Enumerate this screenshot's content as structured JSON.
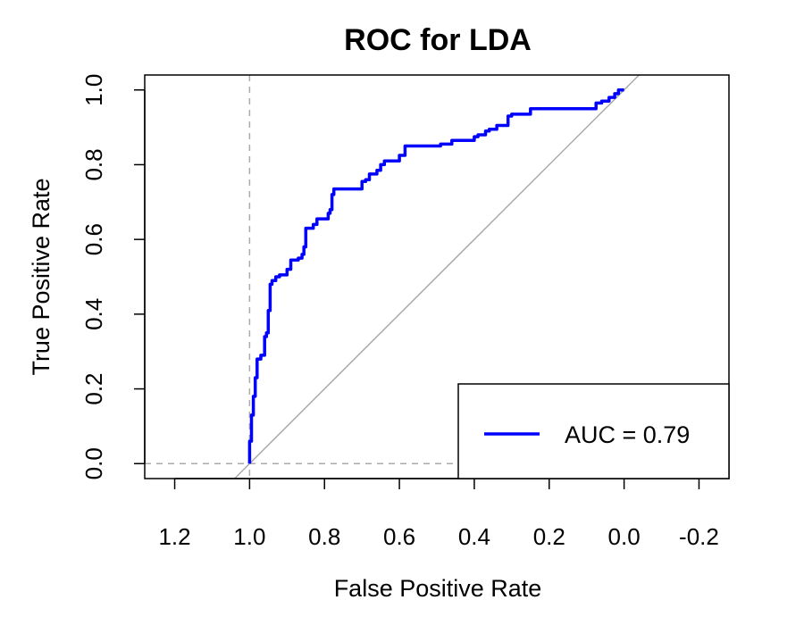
{
  "chart_data": {
    "type": "line",
    "title": "ROC for LDA",
    "xlabel": "False Positive Rate",
    "ylabel": "True Positive Rate",
    "x_reversed": true,
    "xlim": [
      1.28,
      -0.28
    ],
    "ylim": [
      -0.04,
      1.04
    ],
    "x_ticks": [
      1.2,
      1.0,
      0.8,
      0.6,
      0.4,
      0.2,
      0.0,
      -0.2
    ],
    "x_tick_labels": [
      "1.2",
      "1.0",
      "0.8",
      "0.6",
      "0.4",
      "0.2",
      "0.0",
      "-0.2"
    ],
    "y_ticks": [
      0.0,
      0.2,
      0.4,
      0.6,
      0.8,
      1.0
    ],
    "y_tick_labels": [
      "0.0",
      "0.2",
      "0.4",
      "0.6",
      "0.8",
      "1.0"
    ],
    "reference_lines": {
      "vertical_x": 1.0,
      "horizontal_y": 0.0,
      "diagonal": "y = 1 - x",
      "color": "#aaaaaa"
    },
    "series": [
      {
        "name": "AUC = 0.79",
        "color": "#0000ff",
        "points": [
          [
            1.0,
            0.0
          ],
          [
            1.0,
            0.06
          ],
          [
            0.995,
            0.06
          ],
          [
            0.995,
            0.13
          ],
          [
            0.99,
            0.13
          ],
          [
            0.99,
            0.18
          ],
          [
            0.985,
            0.18
          ],
          [
            0.985,
            0.23
          ],
          [
            0.98,
            0.23
          ],
          [
            0.98,
            0.28
          ],
          [
            0.97,
            0.28
          ],
          [
            0.97,
            0.29
          ],
          [
            0.96,
            0.29
          ],
          [
            0.96,
            0.34
          ],
          [
            0.955,
            0.34
          ],
          [
            0.955,
            0.35
          ],
          [
            0.95,
            0.35
          ],
          [
            0.95,
            0.41
          ],
          [
            0.945,
            0.41
          ],
          [
            0.945,
            0.48
          ],
          [
            0.94,
            0.48
          ],
          [
            0.94,
            0.49
          ],
          [
            0.93,
            0.49
          ],
          [
            0.93,
            0.5
          ],
          [
            0.92,
            0.5
          ],
          [
            0.92,
            0.505
          ],
          [
            0.9,
            0.505
          ],
          [
            0.9,
            0.52
          ],
          [
            0.89,
            0.52
          ],
          [
            0.89,
            0.545
          ],
          [
            0.87,
            0.545
          ],
          [
            0.87,
            0.55
          ],
          [
            0.86,
            0.55
          ],
          [
            0.86,
            0.56
          ],
          [
            0.855,
            0.56
          ],
          [
            0.855,
            0.58
          ],
          [
            0.85,
            0.58
          ],
          [
            0.85,
            0.63
          ],
          [
            0.83,
            0.63
          ],
          [
            0.83,
            0.64
          ],
          [
            0.82,
            0.64
          ],
          [
            0.82,
            0.655
          ],
          [
            0.79,
            0.655
          ],
          [
            0.79,
            0.67
          ],
          [
            0.785,
            0.67
          ],
          [
            0.785,
            0.68
          ],
          [
            0.78,
            0.68
          ],
          [
            0.78,
            0.72
          ],
          [
            0.775,
            0.72
          ],
          [
            0.775,
            0.735
          ],
          [
            0.7,
            0.735
          ],
          [
            0.7,
            0.755
          ],
          [
            0.69,
            0.755
          ],
          [
            0.69,
            0.76
          ],
          [
            0.68,
            0.76
          ],
          [
            0.68,
            0.775
          ],
          [
            0.66,
            0.775
          ],
          [
            0.66,
            0.785
          ],
          [
            0.65,
            0.785
          ],
          [
            0.65,
            0.8
          ],
          [
            0.64,
            0.8
          ],
          [
            0.64,
            0.81
          ],
          [
            0.6,
            0.81
          ],
          [
            0.6,
            0.825
          ],
          [
            0.585,
            0.825
          ],
          [
            0.585,
            0.85
          ],
          [
            0.49,
            0.85
          ],
          [
            0.49,
            0.855
          ],
          [
            0.46,
            0.855
          ],
          [
            0.46,
            0.865
          ],
          [
            0.4,
            0.865
          ],
          [
            0.4,
            0.875
          ],
          [
            0.39,
            0.875
          ],
          [
            0.39,
            0.88
          ],
          [
            0.37,
            0.88
          ],
          [
            0.37,
            0.89
          ],
          [
            0.36,
            0.89
          ],
          [
            0.36,
            0.895
          ],
          [
            0.34,
            0.895
          ],
          [
            0.34,
            0.905
          ],
          [
            0.31,
            0.905
          ],
          [
            0.31,
            0.93
          ],
          [
            0.3,
            0.93
          ],
          [
            0.3,
            0.935
          ],
          [
            0.25,
            0.935
          ],
          [
            0.25,
            0.95
          ],
          [
            0.075,
            0.95
          ],
          [
            0.075,
            0.965
          ],
          [
            0.06,
            0.965
          ],
          [
            0.06,
            0.97
          ],
          [
            0.04,
            0.97
          ],
          [
            0.04,
            0.98
          ],
          [
            0.025,
            0.98
          ],
          [
            0.025,
            0.99
          ],
          [
            0.015,
            0.99
          ],
          [
            0.015,
            1.0
          ],
          [
            0.0,
            1.0
          ]
        ]
      }
    ],
    "legend": {
      "position": "bottom-right",
      "entries": [
        {
          "label": "AUC = 0.79",
          "color": "#0000ff"
        }
      ]
    },
    "grid": false
  }
}
